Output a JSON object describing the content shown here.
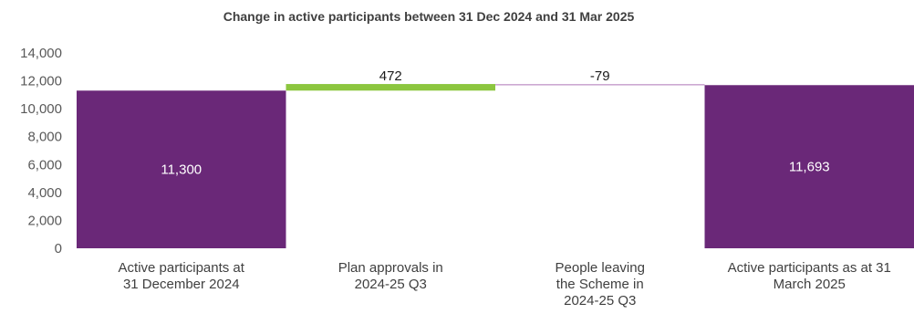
{
  "chart_data": {
    "type": "bar",
    "subtype": "waterfall",
    "title": "Change in active participants between 31 Dec 2024 and 31 Mar 2025",
    "xlabel": "",
    "ylabel": "",
    "ylim": [
      0,
      14000
    ],
    "yticks": [
      0,
      2000,
      4000,
      6000,
      8000,
      10000,
      12000,
      14000
    ],
    "ytick_labels": [
      "0",
      "2,000",
      "4,000",
      "6,000",
      "8,000",
      "10,000",
      "12,000",
      "14,000"
    ],
    "grid": false,
    "legend": "none",
    "categories": [
      [
        "Active participants at",
        "31 December 2024"
      ],
      [
        "Plan approvals in",
        "2024-25 Q3"
      ],
      [
        "People leaving",
        "the Scheme in",
        "2024-25 Q3"
      ],
      [
        "Active participants as at 31",
        "March 2025"
      ]
    ],
    "bars": [
      {
        "kind": "total",
        "start": 0,
        "end": 11300,
        "label": "11,300",
        "color": "#6a2878"
      },
      {
        "kind": "increase",
        "start": 11300,
        "end": 11772,
        "label": "472",
        "color": "#8cc63f"
      },
      {
        "kind": "decrease",
        "start": 11772,
        "end": 11693,
        "label": "-79",
        "color": "#c9a3cf"
      },
      {
        "kind": "total",
        "start": 0,
        "end": 11693,
        "label": "11,693",
        "color": "#6a2878"
      }
    ]
  }
}
